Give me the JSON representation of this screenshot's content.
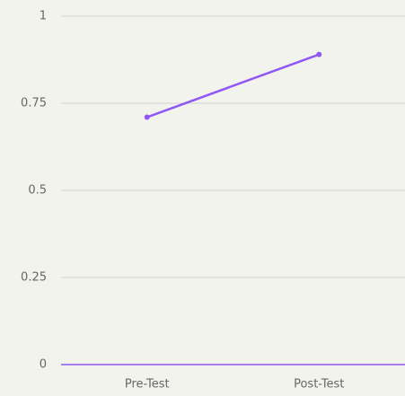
{
  "chart_data": {
    "type": "line",
    "categories": [
      "Pre-Test",
      "Post-Test"
    ],
    "series": [
      {
        "color": "#8f57f4",
        "values": [
          0.71,
          0.89
        ]
      }
    ],
    "ylim": [
      0,
      1
    ],
    "yticks": [
      0,
      0.25,
      0.5,
      0.75,
      1
    ],
    "grid": true
  }
}
